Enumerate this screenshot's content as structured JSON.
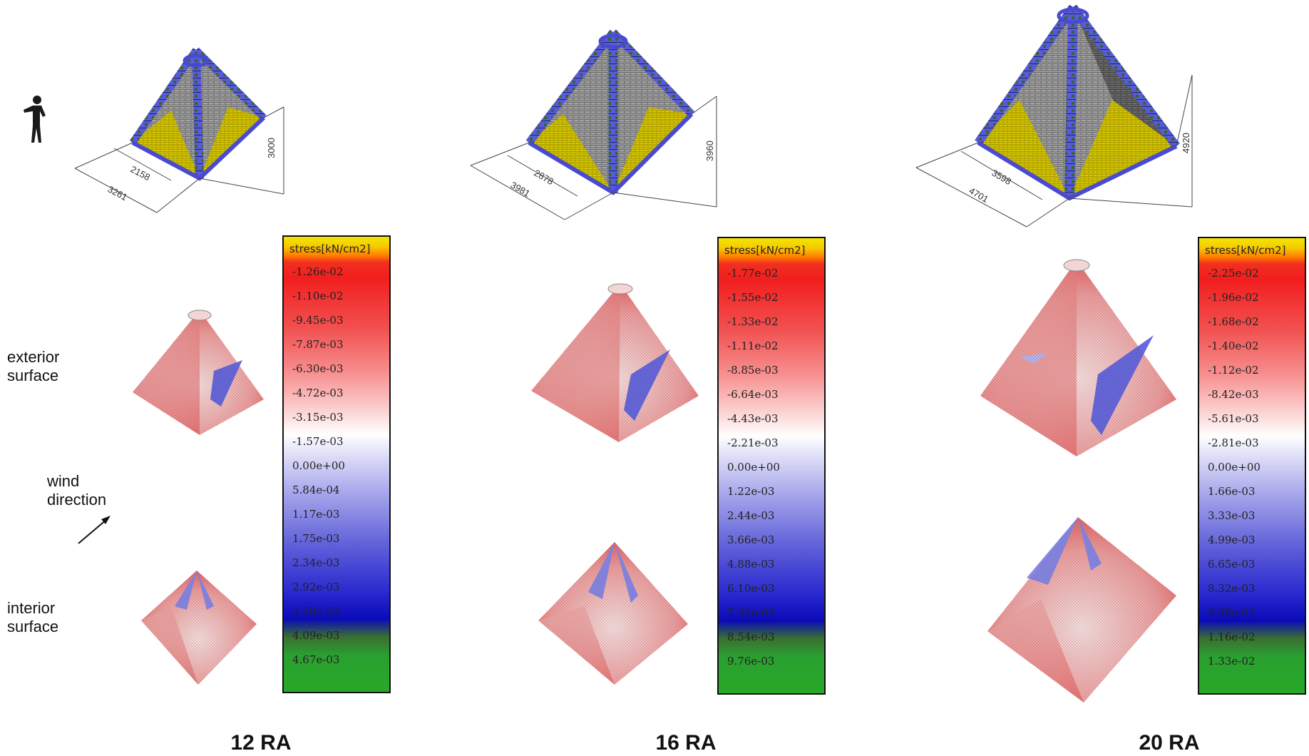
{
  "side_labels": {
    "exterior": [
      "exterior",
      "surface"
    ],
    "wind": [
      "wind",
      "direction"
    ],
    "interior": [
      "interior",
      "surface"
    ]
  },
  "models": [
    {
      "name": "12 RA",
      "dims": {
        "outer": "3261",
        "inner": "2158",
        "height": "3000"
      },
      "legend": {
        "title": "stress[kN/cm2]",
        "ticks": [
          "-1.26e-02",
          "-1.10e-02",
          "-9.45e-03",
          "-7.87e-03",
          "-6.30e-03",
          "-4.72e-03",
          "-3.15e-03",
          "-1.57e-03",
          "0.00e+00",
          "5.84e-04",
          "1.17e-03",
          "1.75e-03",
          "2.34e-03",
          "2.92e-03",
          "3.50e-03",
          "4.09e-03",
          "4.67e-03"
        ]
      }
    },
    {
      "name": "16 RA",
      "dims": {
        "outer": "3981",
        "inner": "2878",
        "height": "3960"
      },
      "legend": {
        "title": "stress[kN/cm2]",
        "ticks": [
          "-1.77e-02",
          "-1.55e-02",
          "-1.33e-02",
          "-1.11e-02",
          "-8.85e-03",
          "-6.64e-03",
          "-4.43e-03",
          "-2.21e-03",
          "0.00e+00",
          "1.22e-03",
          "2.44e-03",
          "3.66e-03",
          "4.88e-03",
          "6.10e-03",
          "7.32e-03",
          "8.54e-03",
          "9.76e-03"
        ]
      }
    },
    {
      "name": "20 RA",
      "dims": {
        "outer": "4701",
        "inner": "3598",
        "height": "4920"
      },
      "legend": {
        "title": "stress[kN/cm2]",
        "ticks": [
          "-2.25e-02",
          "-1.96e-02",
          "-1.68e-02",
          "-1.40e-02",
          "-1.12e-02",
          "-8.42e-03",
          "-5.61e-03",
          "-2.81e-03",
          "0.00e+00",
          "1.66e-03",
          "3.33e-03",
          "4.99e-03",
          "6.65e-03",
          "8.32e-03",
          "9.98e-03",
          "1.16e-02",
          "1.33e-02"
        ]
      }
    }
  ],
  "colors": {
    "brick_blue": "#5a5ad8",
    "brick_grey": "#9a9a9a",
    "brick_yellow": "#d8c800",
    "stress_red": "#e85a5a",
    "stress_blue": "#6a6ae0"
  },
  "icons": [
    "human-figure-icon",
    "wind-arrow-icon"
  ]
}
